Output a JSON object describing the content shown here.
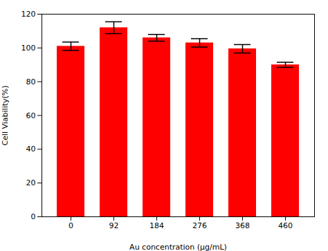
{
  "chart_data": {
    "type": "bar",
    "categories": [
      "0",
      "92",
      "184",
      "276",
      "368",
      "460"
    ],
    "values": [
      101,
      112,
      106,
      103,
      99.5,
      90
    ],
    "errors": [
      2.5,
      3.5,
      2.0,
      2.5,
      2.5,
      1.5
    ],
    "color": "#FF0000",
    "xlabel": "Au concentration (μg/mL)",
    "ylabel": "Cell Viability(%)",
    "ylim": [
      0,
      120
    ],
    "yticks": [
      0,
      20,
      40,
      60,
      80,
      100,
      120
    ],
    "grid": false
  }
}
